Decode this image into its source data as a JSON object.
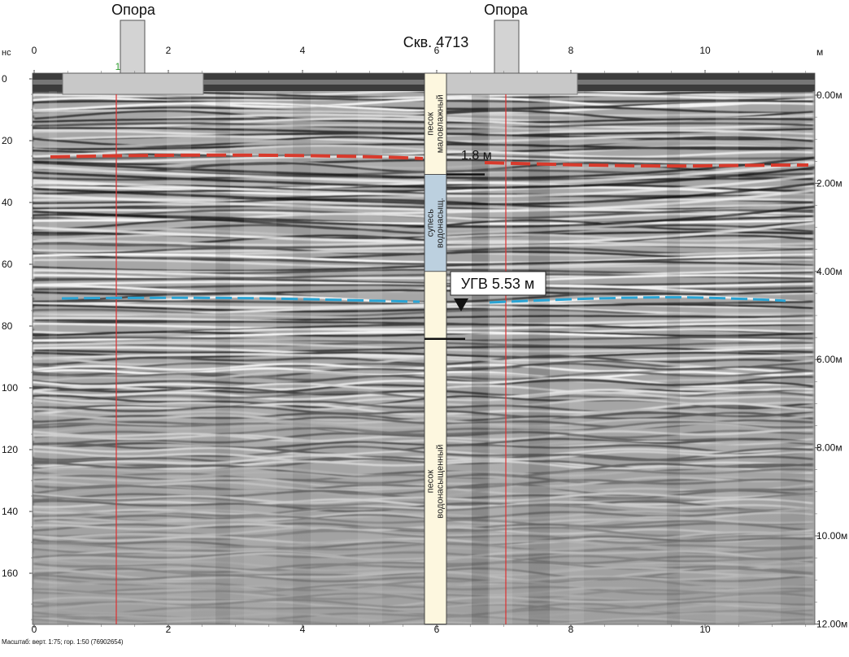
{
  "borehole": {
    "title": "Скв. 4713",
    "layers": [
      {
        "label_lines": [
          "песок",
          "маловлажный"
        ],
        "top_m": 0,
        "bottom_m": 1.8,
        "color": "#fdf7df"
      },
      {
        "label_lines": [
          "супесь",
          "водонасыщ."
        ],
        "top_m": 1.8,
        "bottom_m": 4.0,
        "color": "#bcd0df"
      },
      {
        "label_lines": [
          "",
          ""
        ],
        "top_m": 4.0,
        "bottom_m": 5.53,
        "color": "#fdf7df"
      },
      {
        "label_lines": [
          "песок",
          "водонасыщенный"
        ],
        "top_m": 5.53,
        "bottom_m": 12.0,
        "color": "#fdf7df"
      }
    ],
    "contact_label": "1.8 м",
    "groundwater_label": "УГВ 5.53 м"
  },
  "supports": [
    {
      "label": "Опора",
      "distance_m": 1.45
    },
    {
      "label": "Опора",
      "distance_m": 7.05
    }
  ],
  "axes": {
    "time_unit": "нс",
    "distance_unit": "м",
    "distance_ticks": [
      "0",
      "2",
      "4",
      "6",
      "8",
      "10"
    ],
    "time_ticks": [
      "0",
      "20",
      "40",
      "60",
      "80",
      "100",
      "120",
      "140",
      "160"
    ],
    "depth_ticks": [
      "0.00м",
      "2.00м",
      "4.00м",
      "6.00м",
      "8.00м",
      "10.00м",
      "12.00м"
    ],
    "top_marker": "1"
  },
  "interpretation": {
    "boundary_color": "#d83a2c",
    "groundwater_color": "#2aa4d4",
    "trace_line_color": "#e03030"
  },
  "footer": "Масштаб: верт. 1:75; гор. 1:50 (76902654)"
}
